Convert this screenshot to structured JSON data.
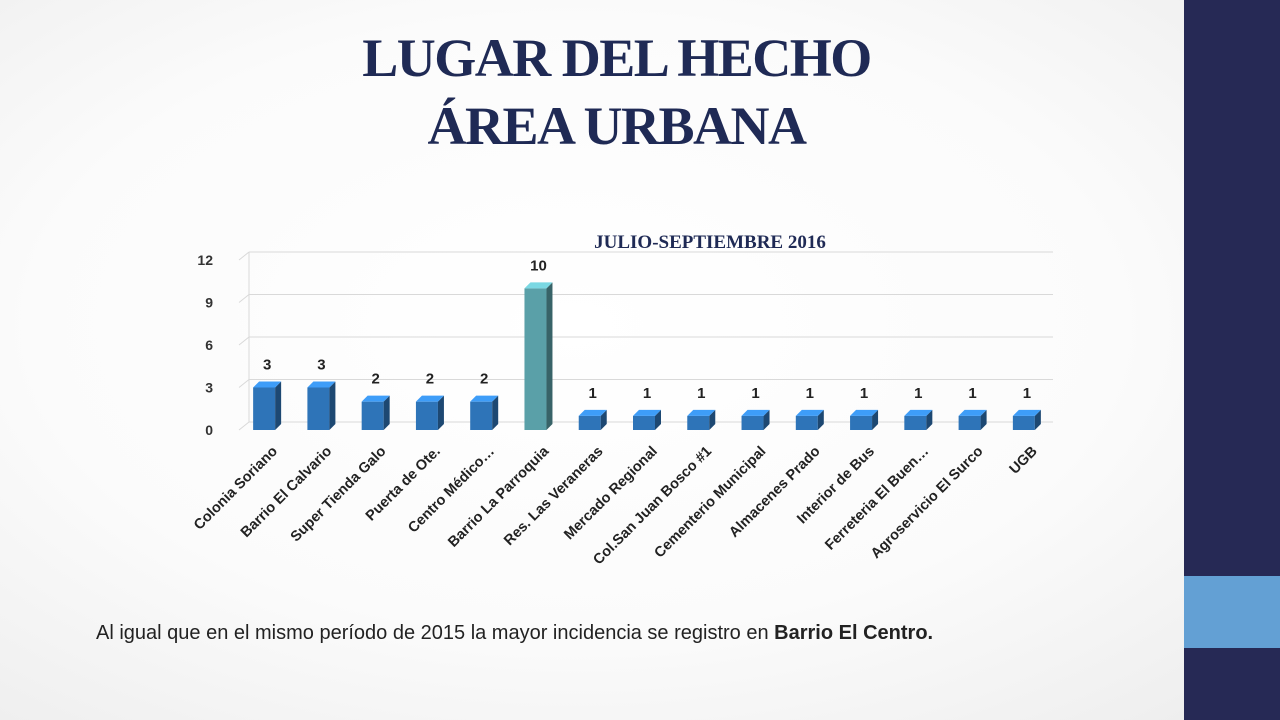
{
  "slide": {
    "title_line1": "LUGAR DEL HECHO",
    "title_line2": "ÁREA URBANA",
    "caption_text": "Al igual que en el mismo período de 2015 la mayor incidencia se registro en ",
    "caption_bold": "Barrio El Centro."
  },
  "colors": {
    "band": "#262955",
    "accent": "#63a0d4",
    "bar": "#2e74b8",
    "bar_highlight": "#5aa0a8",
    "title": "#1f2a55"
  },
  "chart_data": {
    "type": "bar",
    "title": "JULIO-SEPTIEMBRE 2016",
    "categories": [
      "Colonia Soriano",
      "Barrio El Calvario",
      "Super Tienda Galo",
      "Puerta de Ote.",
      "Centro Médico…",
      "Barrio La Parroquia",
      "Res. Las Veraneras",
      "Mercado Regional",
      "Col.San Juan Bosco #1",
      "Cementerio Municipal",
      "Almacenes Prado",
      "Interior de Bus",
      "Ferreteria El Buen…",
      "Agroservicio El Surco",
      "UGB"
    ],
    "values": [
      3,
      3,
      2,
      2,
      2,
      10,
      1,
      1,
      1,
      1,
      1,
      1,
      1,
      1,
      1
    ],
    "highlight_index": 5,
    "yticks": [
      "0",
      "3",
      "6",
      "9",
      "12"
    ],
    "ylim": [
      0,
      12
    ],
    "grid": true,
    "legend": "none"
  }
}
